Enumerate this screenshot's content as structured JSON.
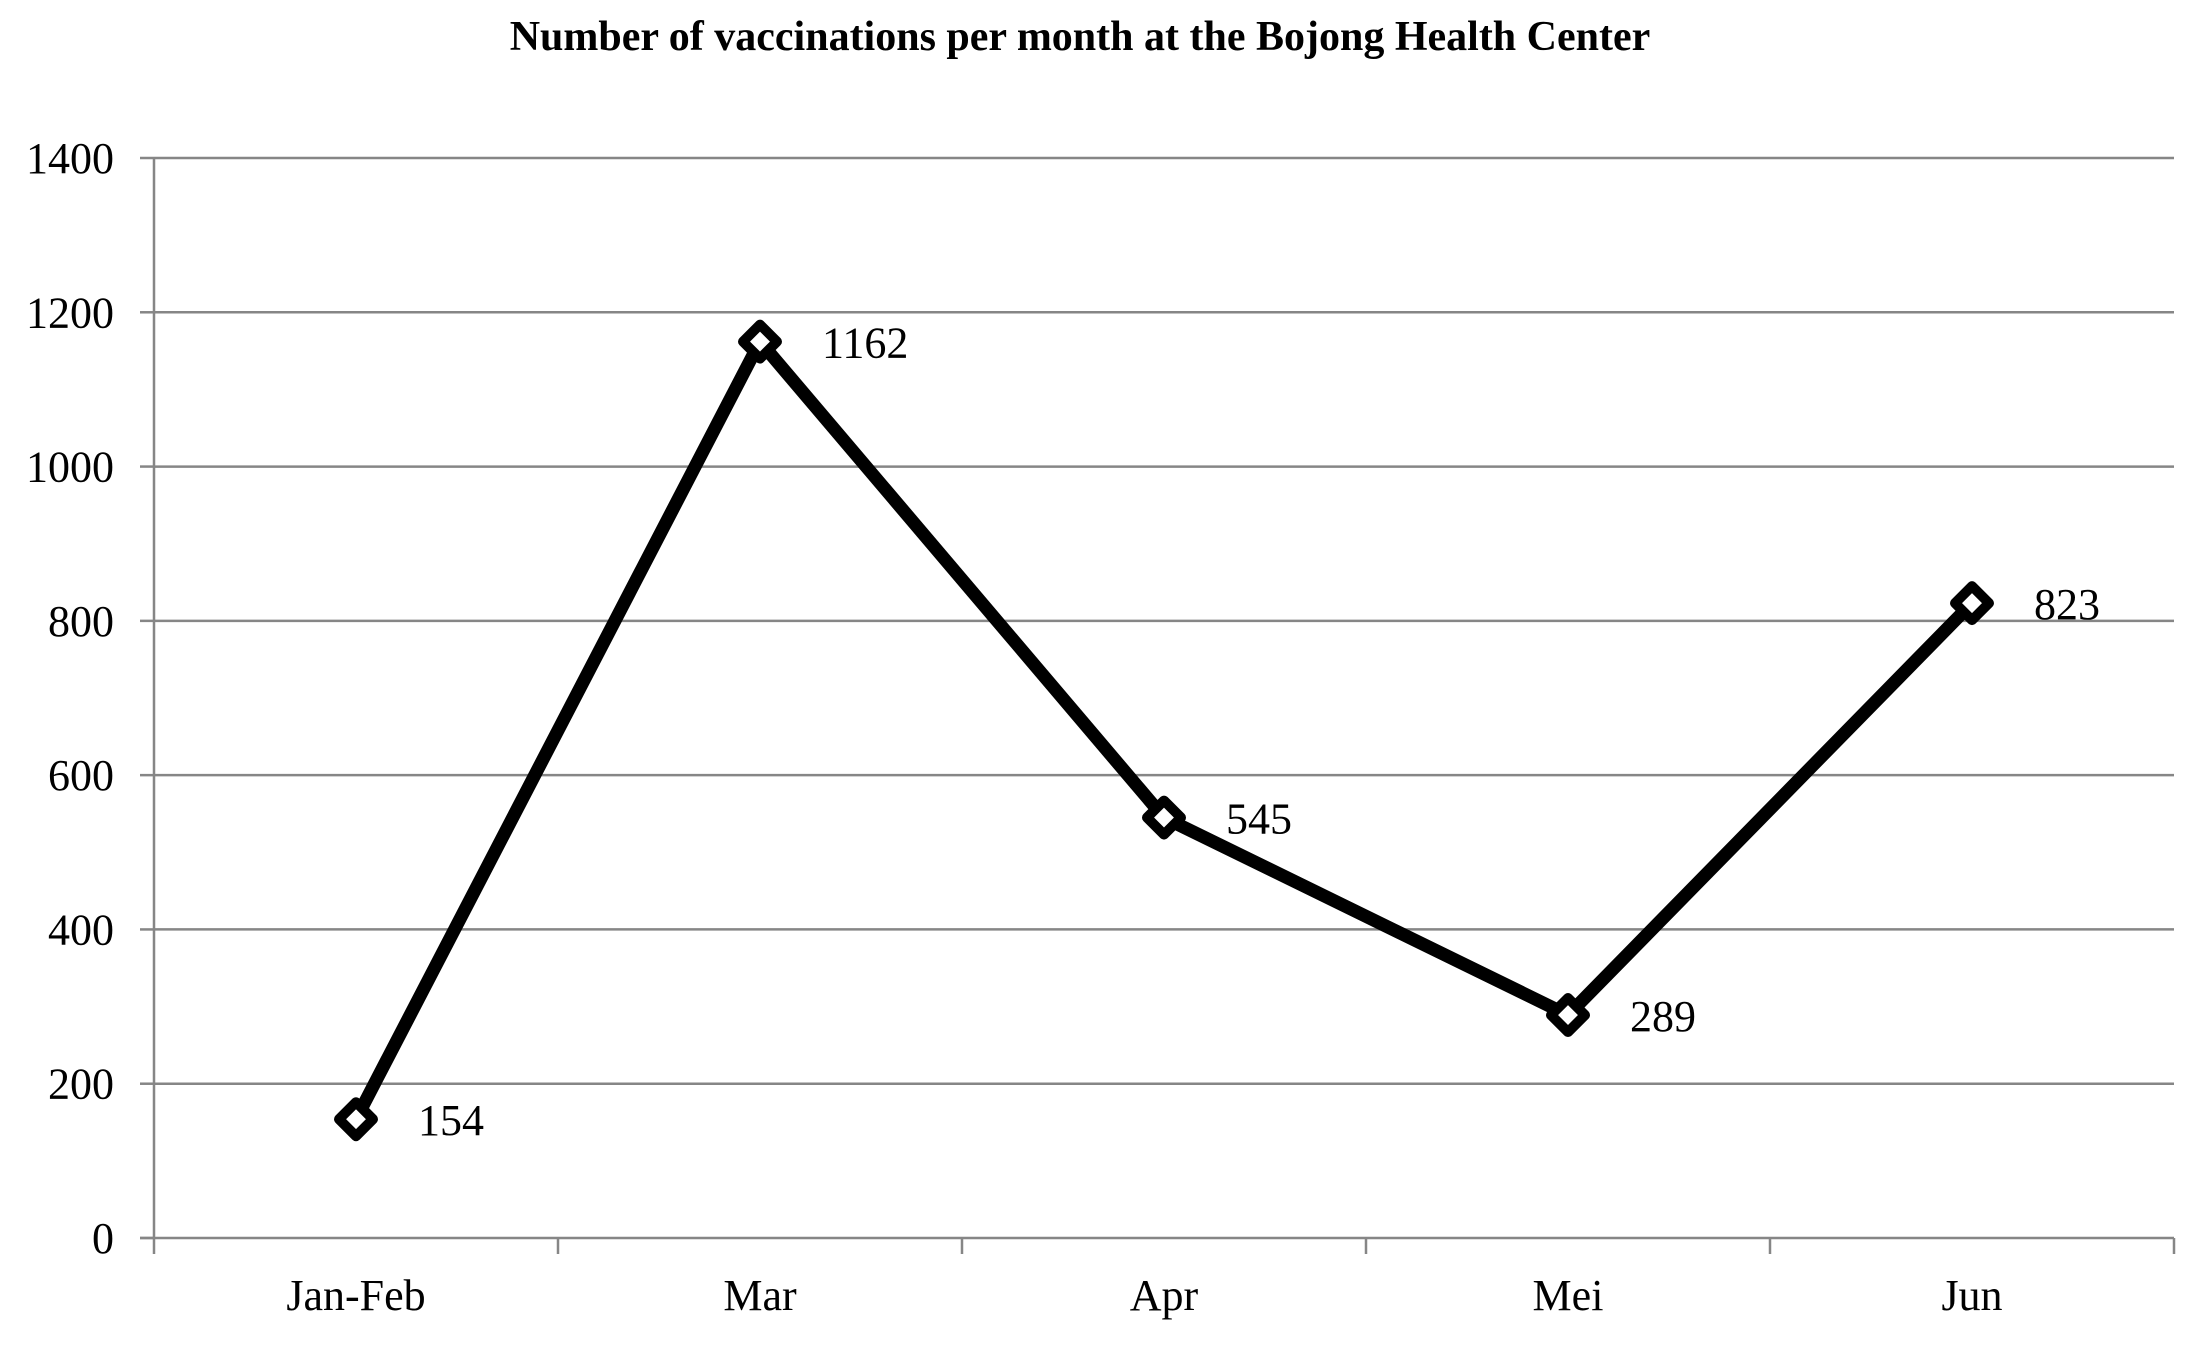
{
  "chart_data": {
    "type": "line",
    "title": "Number of vaccinations per month at the Bojong Health Center",
    "xlabel": "",
    "ylabel": "",
    "categories": [
      "Jan-Feb",
      "Mar",
      "Apr",
      "Mei",
      "Jun"
    ],
    "series": [
      {
        "name": "Vaccinations",
        "values": [
          154,
          1162,
          545,
          289,
          823
        ],
        "color": "#000000",
        "marker": "diamond"
      }
    ],
    "data_labels": [
      "154",
      "1162",
      "545",
      "289",
      "823"
    ],
    "ylim": [
      0,
      1400
    ],
    "yticks": [
      0,
      200,
      400,
      600,
      800,
      1000,
      1200,
      1400
    ],
    "grid": true,
    "legend": "none",
    "colors": {
      "grid": "#868686",
      "line": "#000000"
    }
  }
}
